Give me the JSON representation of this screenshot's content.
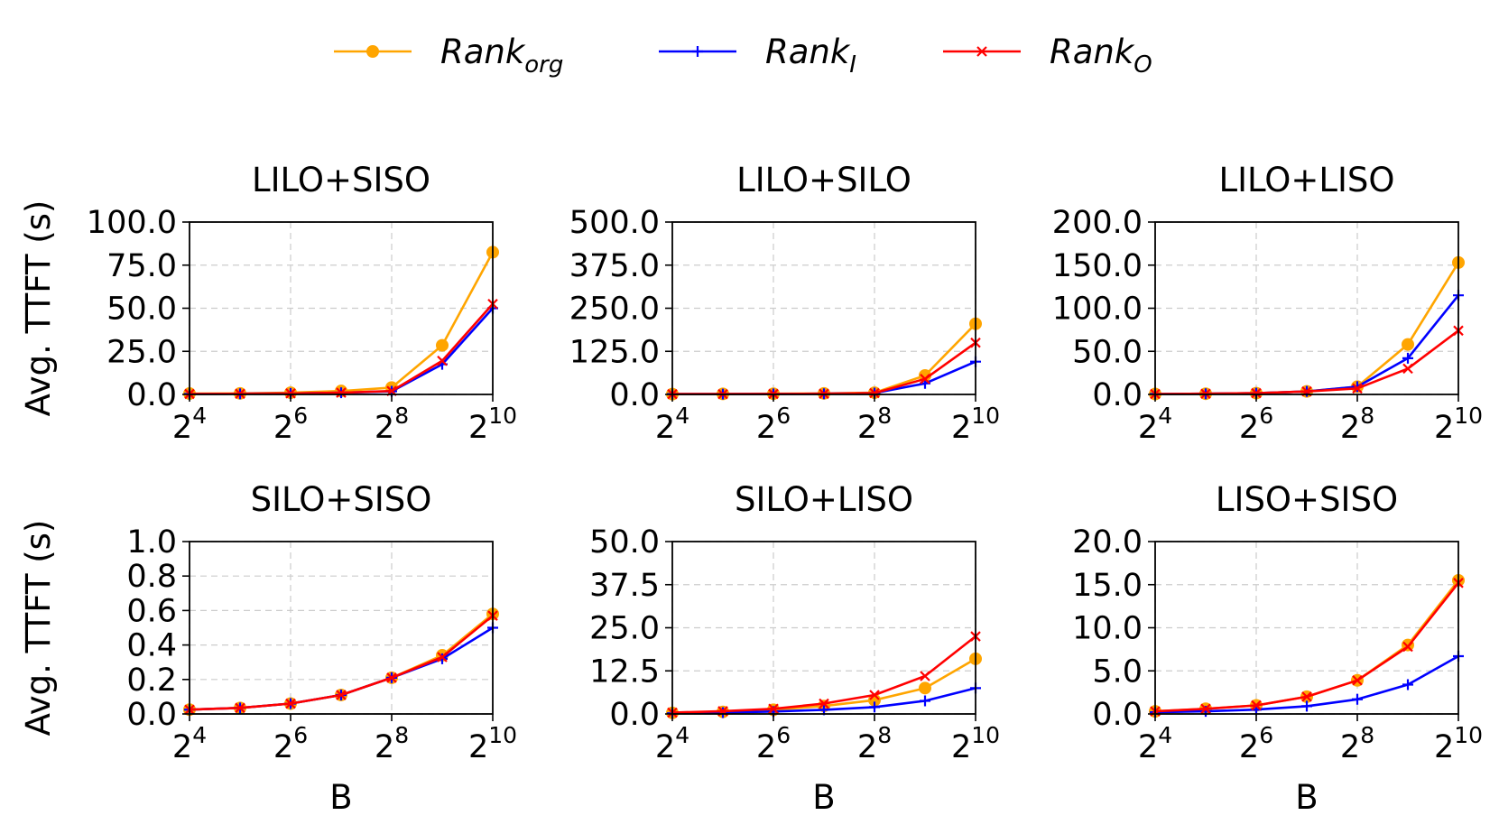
{
  "legend": {
    "placement": "top-center",
    "entries": [
      {
        "base": "Rank",
        "sub": "org",
        "color": "#FFA500",
        "marker": "circle"
      },
      {
        "base": "Rank",
        "sub": "I",
        "color": "#0000FF",
        "marker": "plus"
      },
      {
        "base": "Rank",
        "sub": "O",
        "color": "#FF0000",
        "marker": "x"
      }
    ]
  },
  "colors": {
    "orange": "#FFA500",
    "blue": "#0000FF",
    "red": "#FF0000",
    "grid": "#cccccc"
  },
  "chart_data": [
    {
      "type": "line",
      "title": "LILO+SISO",
      "xlabel": "",
      "ylabel": "Avg. TTFT (s)",
      "x": [
        16,
        32,
        64,
        128,
        256,
        512,
        1024
      ],
      "xscale": "log2",
      "xticks": [
        "2^4",
        "2^6",
        "2^8",
        "2^10"
      ],
      "xtick_values": [
        16,
        64,
        256,
        1024
      ],
      "ylim": [
        0,
        100
      ],
      "yticks": [
        "0.0",
        "25.0",
        "50.0",
        "75.0",
        "100.0"
      ],
      "ytick_values": [
        0,
        25,
        50,
        75,
        100
      ],
      "grid": true,
      "series": [
        {
          "name": "Rank_org",
          "values": [
            0.5,
            0.6,
            1.0,
            2.0,
            4.0,
            28.5,
            82.5
          ]
        },
        {
          "name": "Rank_I",
          "values": [
            0.3,
            0.4,
            0.6,
            1.0,
            1.8,
            17.5,
            50.0
          ]
        },
        {
          "name": "Rank_O",
          "values": [
            0.3,
            0.4,
            0.6,
            1.0,
            2.0,
            19.5,
            52.5
          ]
        }
      ]
    },
    {
      "type": "line",
      "title": "LILO+SILO",
      "xlabel": "",
      "ylabel": "",
      "x": [
        16,
        32,
        64,
        128,
        256,
        512,
        1024
      ],
      "xscale": "log2",
      "xticks": [
        "2^4",
        "2^6",
        "2^8",
        "2^10"
      ],
      "xtick_values": [
        16,
        64,
        256,
        1024
      ],
      "ylim": [
        0,
        500
      ],
      "yticks": [
        "0.0",
        "125.0",
        "250.0",
        "375.0",
        "500.0"
      ],
      "ytick_values": [
        0,
        125,
        250,
        375,
        500
      ],
      "grid": true,
      "series": [
        {
          "name": "Rank_org",
          "values": [
            1,
            1.5,
            2,
            3,
            5,
            55,
            205
          ]
        },
        {
          "name": "Rank_I",
          "values": [
            1,
            1,
            1.5,
            2,
            4,
            32,
            95
          ]
        },
        {
          "name": "Rank_O",
          "values": [
            1,
            1,
            1.5,
            2,
            4,
            45,
            150
          ]
        }
      ]
    },
    {
      "type": "line",
      "title": "LILO+LISO",
      "xlabel": "",
      "ylabel": "",
      "x": [
        16,
        32,
        64,
        128,
        256,
        512,
        1024
      ],
      "xscale": "log2",
      "xticks": [
        "2^4",
        "2^6",
        "2^8",
        "2^10"
      ],
      "xtick_values": [
        16,
        64,
        256,
        1024
      ],
      "ylim": [
        0,
        200
      ],
      "yticks": [
        "0.0",
        "50.0",
        "100.0",
        "150.0",
        "200.0"
      ],
      "ytick_values": [
        0,
        50,
        100,
        150,
        200
      ],
      "grid": true,
      "series": [
        {
          "name": "Rank_org",
          "values": [
            0.5,
            0.8,
            1.5,
            3.5,
            9,
            58,
            153
          ]
        },
        {
          "name": "Rank_I",
          "values": [
            0.5,
            0.8,
            1.5,
            3.5,
            9,
            42,
            115
          ]
        },
        {
          "name": "Rank_O",
          "values": [
            0.5,
            0.8,
            1.5,
            3.5,
            7,
            30,
            74
          ]
        }
      ]
    },
    {
      "type": "line",
      "title": "SILO+SISO",
      "xlabel": "B",
      "ylabel": "Avg. TTFT (s)",
      "x": [
        16,
        32,
        64,
        128,
        256,
        512,
        1024
      ],
      "xscale": "log2",
      "xticks": [
        "2^4",
        "2^6",
        "2^8",
        "2^10"
      ],
      "xtick_values": [
        16,
        64,
        256,
        1024
      ],
      "ylim": [
        0,
        1
      ],
      "yticks": [
        "0.0",
        "0.2",
        "0.4",
        "0.6",
        "0.8",
        "1.0"
      ],
      "ytick_values": [
        0,
        0.2,
        0.4,
        0.6,
        0.8,
        1.0
      ],
      "grid": true,
      "series": [
        {
          "name": "Rank_org",
          "values": [
            0.025,
            0.035,
            0.06,
            0.11,
            0.21,
            0.34,
            0.58
          ]
        },
        {
          "name": "Rank_I",
          "values": [
            0.025,
            0.035,
            0.06,
            0.11,
            0.21,
            0.32,
            0.5
          ]
        },
        {
          "name": "Rank_O",
          "values": [
            0.025,
            0.035,
            0.06,
            0.11,
            0.21,
            0.33,
            0.57
          ]
        }
      ]
    },
    {
      "type": "line",
      "title": "SILO+LISO",
      "xlabel": "B",
      "ylabel": "",
      "x": [
        16,
        32,
        64,
        128,
        256,
        512,
        1024
      ],
      "xscale": "log2",
      "xticks": [
        "2^4",
        "2^6",
        "2^8",
        "2^10"
      ],
      "xtick_values": [
        16,
        64,
        256,
        1024
      ],
      "ylim": [
        0,
        50
      ],
      "yticks": [
        "0.0",
        "12.5",
        "25.0",
        "37.5",
        "50.0"
      ],
      "ytick_values": [
        0,
        12.5,
        25,
        37.5,
        50
      ],
      "grid": true,
      "series": [
        {
          "name": "Rank_org",
          "values": [
            0.3,
            0.6,
            1.2,
            2.3,
            4.0,
            7.5,
            16.0
          ]
        },
        {
          "name": "Rank_I",
          "values": [
            0.2,
            0.4,
            0.7,
            1.2,
            2.0,
            3.8,
            7.5
          ]
        },
        {
          "name": "Rank_O",
          "values": [
            0.4,
            0.8,
            1.5,
            3.0,
            5.5,
            11.0,
            22.5
          ]
        }
      ]
    },
    {
      "type": "line",
      "title": "LISO+SISO",
      "xlabel": "B",
      "ylabel": "",
      "x": [
        16,
        32,
        64,
        128,
        256,
        512,
        1024
      ],
      "xscale": "log2",
      "xticks": [
        "2^4",
        "2^6",
        "2^8",
        "2^10"
      ],
      "xtick_values": [
        16,
        64,
        256,
        1024
      ],
      "ylim": [
        0,
        20
      ],
      "yticks": [
        "0.0",
        "5.0",
        "10.0",
        "15.0",
        "20.0"
      ],
      "ytick_values": [
        0,
        5,
        10,
        15,
        20
      ],
      "grid": true,
      "series": [
        {
          "name": "Rank_org",
          "values": [
            0.3,
            0.6,
            1.0,
            2.0,
            3.9,
            8.0,
            15.5
          ]
        },
        {
          "name": "Rank_I",
          "values": [
            0.2,
            0.3,
            0.5,
            0.9,
            1.7,
            3.4,
            6.7
          ]
        },
        {
          "name": "Rank_O",
          "values": [
            0.3,
            0.6,
            1.0,
            2.0,
            3.9,
            7.8,
            15.2
          ]
        }
      ]
    }
  ]
}
